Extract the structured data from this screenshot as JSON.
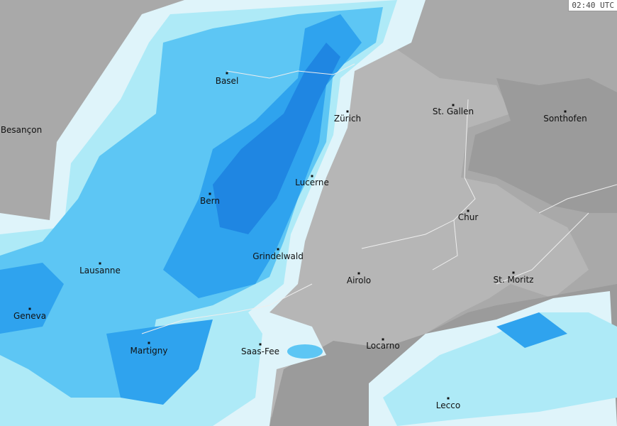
{
  "timestamp": "02:40 UTC",
  "colors": {
    "background": "#a9a9a9",
    "switzerland": "#b6b6b6",
    "neighbor_dark": "#9b9b9b",
    "precip_light": "#dff4fa",
    "precip_cyan": "#aeeaf7",
    "precip_mid": "#5dc6f4",
    "precip_strong": "#2fa3ee",
    "precip_heavy": "#1f86e2"
  },
  "cities": [
    {
      "name": "Basel"
    },
    {
      "name": "Besançon"
    },
    {
      "name": "Zürich"
    },
    {
      "name": "St. Gallen"
    },
    {
      "name": "Sonthofen"
    },
    {
      "name": "Lucerne"
    },
    {
      "name": "Bern"
    },
    {
      "name": "Chur"
    },
    {
      "name": "Grindelwald"
    },
    {
      "name": "Lausanne"
    },
    {
      "name": "Airolo"
    },
    {
      "name": "St. Moritz"
    },
    {
      "name": "Geneva"
    },
    {
      "name": "Martigny"
    },
    {
      "name": "Saas-Fee"
    },
    {
      "name": "Locarno"
    },
    {
      "name": "Lecco"
    }
  ]
}
